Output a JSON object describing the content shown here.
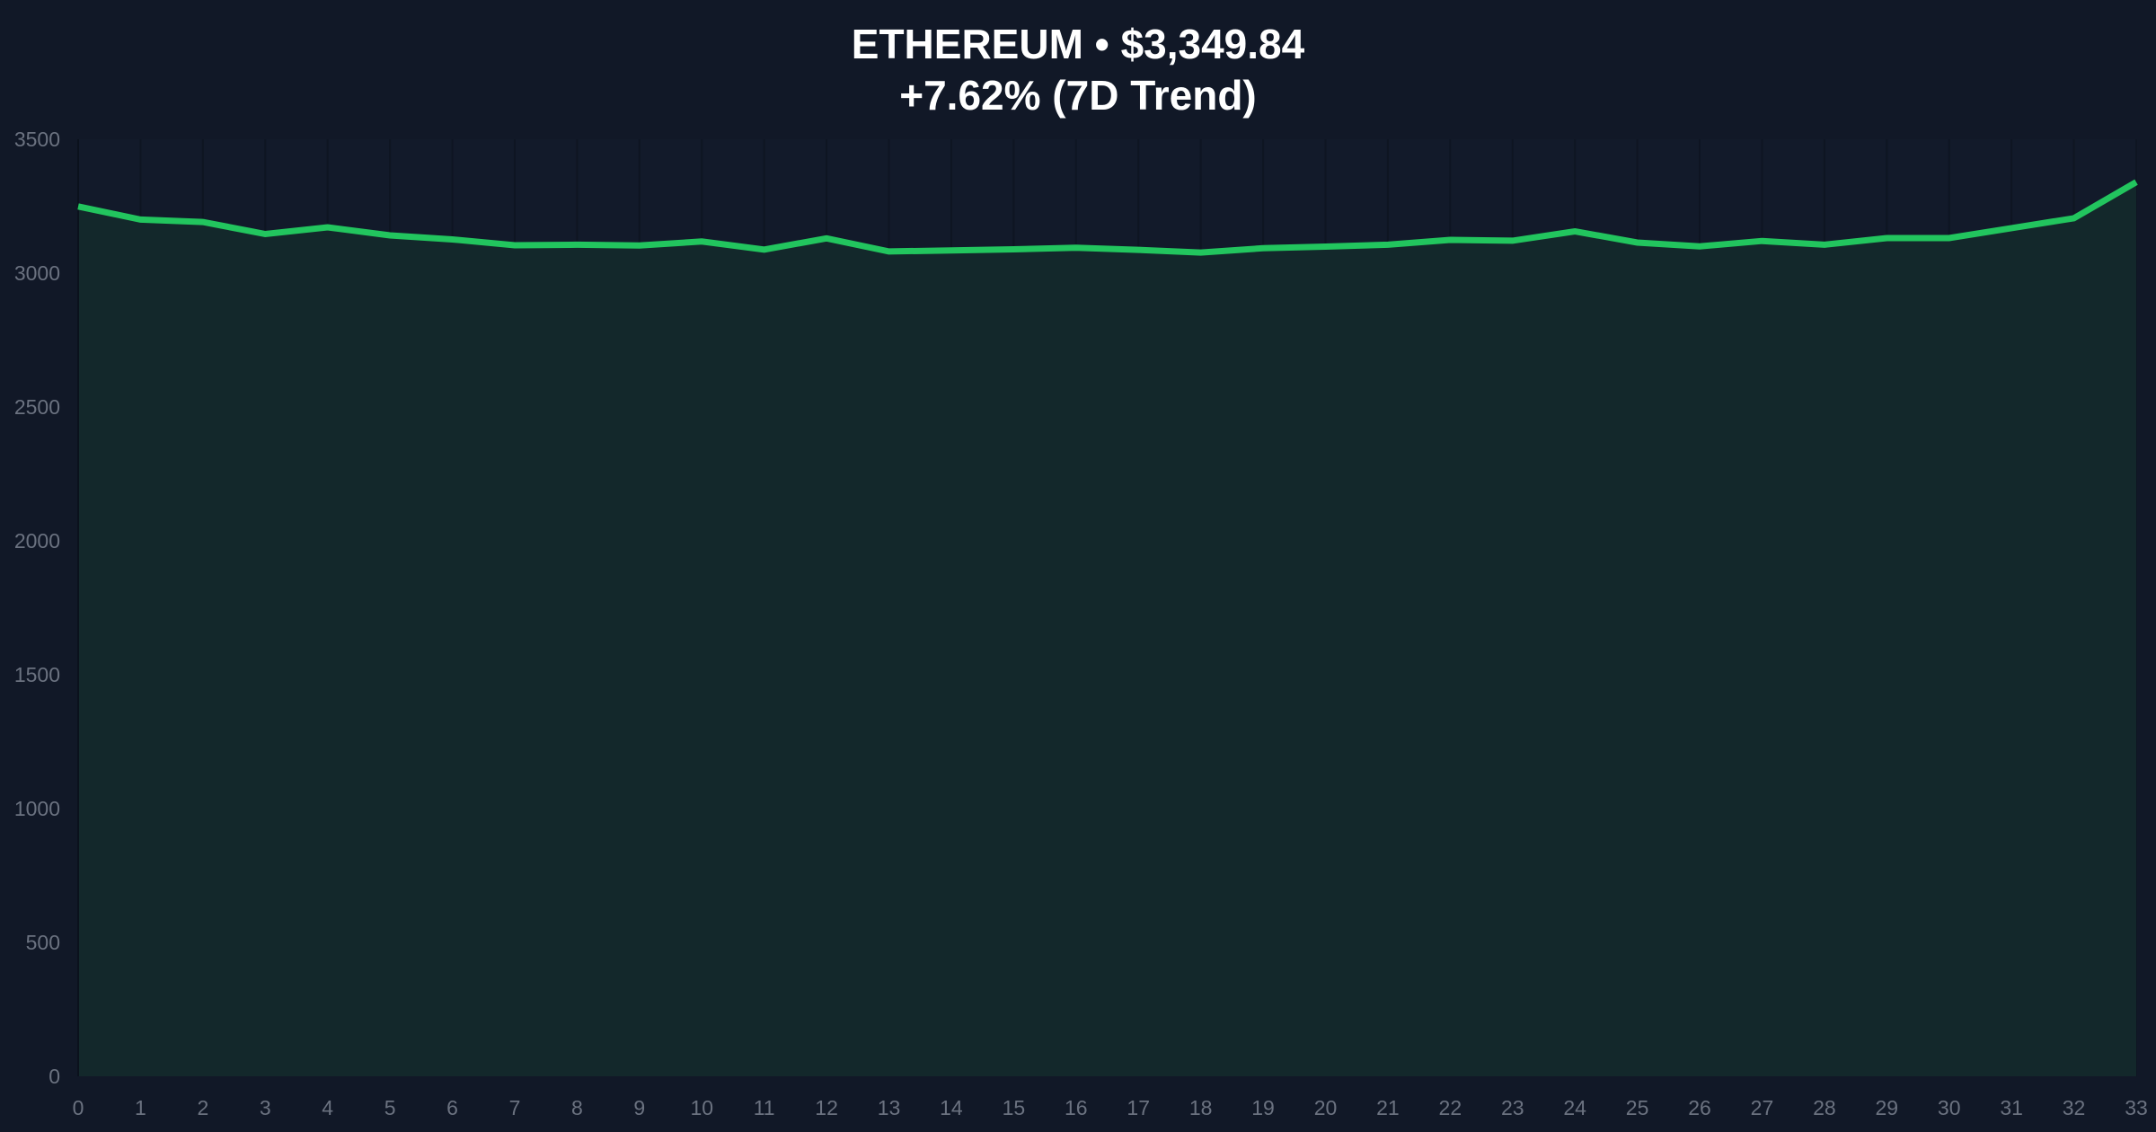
{
  "chart_data": {
    "type": "area",
    "title": "ETHEREUM • $3,349.84",
    "subtitle": "+7.62% (7D Trend)",
    "xlabel": "",
    "ylabel": "",
    "x": [
      0,
      1,
      2,
      3,
      4,
      5,
      6,
      7,
      8,
      9,
      10,
      11,
      12,
      13,
      14,
      15,
      16,
      17,
      18,
      19,
      20,
      21,
      22,
      23,
      24,
      25,
      26,
      27,
      28,
      29,
      30,
      31,
      32,
      33
    ],
    "values": [
      3249,
      3200,
      3191,
      3146,
      3171,
      3141,
      3126,
      3104,
      3106,
      3103,
      3118,
      3088,
      3130,
      3081,
      3085,
      3089,
      3095,
      3087,
      3077,
      3093,
      3099,
      3106,
      3124,
      3121,
      3156,
      3114,
      3100,
      3120,
      3106,
      3131,
      3131,
      3168,
      3205,
      3340
    ],
    "xlim": [
      0,
      33
    ],
    "ylim": [
      0,
      3500
    ],
    "yticks": [
      0,
      500,
      1000,
      1500,
      2000,
      2500,
      3000,
      3500
    ],
    "xticks": [
      0,
      1,
      2,
      3,
      4,
      5,
      6,
      7,
      8,
      9,
      10,
      11,
      12,
      13,
      14,
      15,
      16,
      17,
      18,
      19,
      20,
      21,
      22,
      23,
      24,
      25,
      26,
      27,
      28,
      29,
      30,
      31,
      32,
      33
    ],
    "grid": "vertical",
    "legend": "none",
    "colors": {
      "background": "#111827",
      "line": "#22c55e",
      "fill": "#13282b",
      "tick_text": "#6b7280"
    }
  }
}
